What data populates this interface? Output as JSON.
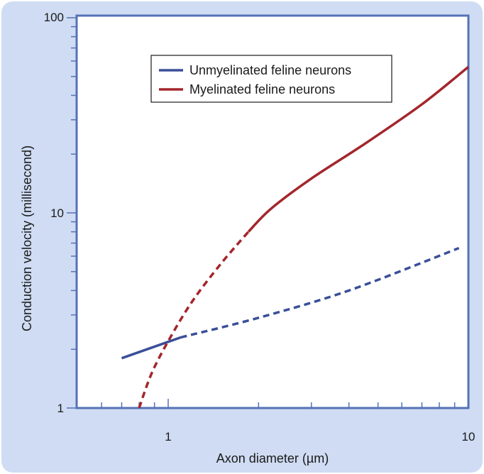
{
  "chart_data": {
    "type": "line",
    "title": "",
    "xlabel": "Axon diameter (µm)",
    "ylabel": "Conduction velocity (millisecond)",
    "x_scale": "log",
    "y_scale": "log",
    "xlim": [
      0.42,
      10
    ],
    "ylim": [
      1,
      100
    ],
    "x_tick_labels": [
      "1",
      "10"
    ],
    "y_tick_labels": [
      "1",
      "10",
      "100"
    ],
    "grid": false,
    "legend_position": "top-center",
    "series": [
      {
        "name": "Unmyelinated feline neurons",
        "color": "#3a4f98",
        "segments": [
          {
            "style": "solid",
            "x": [
              0.7,
              1.1
            ],
            "y": [
              1.8,
              2.3
            ]
          },
          {
            "style": "dashed",
            "x": [
              1.1,
              2.0,
              4.0,
              9.3
            ],
            "y": [
              2.3,
              2.9,
              4.0,
              6.6
            ]
          }
        ]
      },
      {
        "name": "Myelinated feline neurons",
        "color": "#a3262c",
        "segments": [
          {
            "style": "dashed",
            "x": [
              0.8,
              0.88,
              1.0,
              1.2,
              1.5,
              1.85
            ],
            "y": [
              1.0,
              1.5,
              2.2,
              3.5,
              5.5,
              8.0
            ]
          },
          {
            "style": "solid",
            "x": [
              1.85,
              2.2,
              3.0,
              4.5,
              7.0,
              10.0
            ],
            "y": [
              8.0,
              10.5,
              15.0,
              22.5,
              36.0,
              56.0
            ]
          }
        ]
      }
    ]
  }
}
